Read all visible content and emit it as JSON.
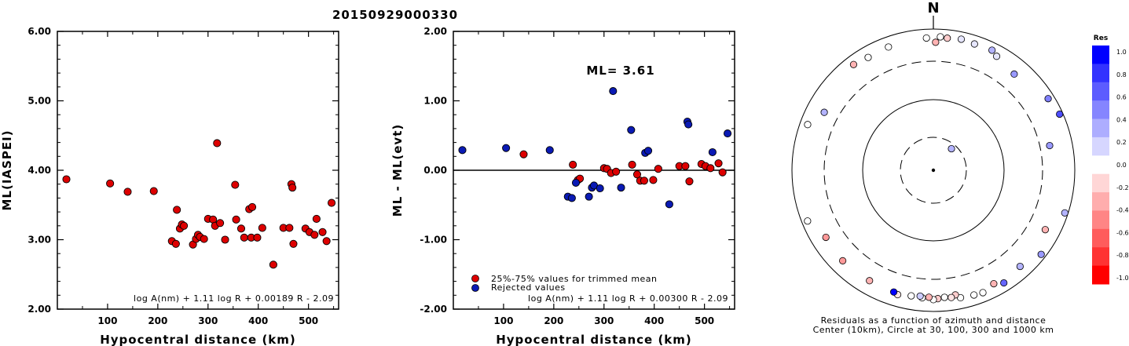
{
  "title": "20150929000330",
  "chart_data": [
    {
      "type": "scatter",
      "xlabel": "Hypocentral distance (km)",
      "ylabel": "ML(IASPEI)",
      "xlim": [
        0,
        560
      ],
      "ylim": [
        2.0,
        6.0
      ],
      "x_ticks": [
        "100",
        "200",
        "300",
        "400",
        "500"
      ],
      "y_ticks": [
        "2.00",
        "3.00",
        "4.00",
        "5.00",
        "6.00"
      ],
      "formula": "log A(nm) + 1.11 log R + 0.00189 R - 2.09",
      "series": [
        {
          "color": "#dd0000",
          "points": [
            [
              18,
              3.87
            ],
            [
              105,
              3.81
            ],
            [
              140,
              3.69
            ],
            [
              192,
              3.7
            ],
            [
              228,
              2.98
            ],
            [
              236,
              2.94
            ],
            [
              238,
              3.43
            ],
            [
              244,
              3.16
            ],
            [
              248,
              3.22
            ],
            [
              252,
              3.2
            ],
            [
              270,
              2.93
            ],
            [
              276,
              3.01
            ],
            [
              280,
              3.07
            ],
            [
              284,
              3.04
            ],
            [
              292,
              3.01
            ],
            [
              300,
              3.3
            ],
            [
              310,
              3.29
            ],
            [
              314,
              3.2
            ],
            [
              318,
              4.39
            ],
            [
              324,
              3.24
            ],
            [
              334,
              3.0
            ],
            [
              354,
              3.79
            ],
            [
              356,
              3.29
            ],
            [
              366,
              3.16
            ],
            [
              372,
              3.03
            ],
            [
              382,
              3.44
            ],
            [
              386,
              3.03
            ],
            [
              388,
              3.47
            ],
            [
              398,
              3.03
            ],
            [
              408,
              3.17
            ],
            [
              430,
              2.64
            ],
            [
              450,
              3.17
            ],
            [
              462,
              3.17
            ],
            [
              466,
              3.8
            ],
            [
              468,
              3.75
            ],
            [
              470,
              2.94
            ],
            [
              494,
              3.16
            ],
            [
              502,
              3.11
            ],
            [
              512,
              3.07
            ],
            [
              516,
              3.3
            ],
            [
              528,
              3.11
            ],
            [
              536,
              2.98
            ],
            [
              546,
              3.53
            ]
          ]
        }
      ]
    },
    {
      "type": "scatter",
      "xlabel": "Hypocentral distance (km)",
      "ylabel": "ML - ML(evt)",
      "xlim": [
        0,
        560
      ],
      "ylim": [
        -2.0,
        2.0
      ],
      "x_ticks": [
        "100",
        "200",
        "300",
        "400",
        "500"
      ],
      "y_ticks": [
        "-2.00",
        "-1.00",
        "0.00",
        "1.00",
        "2.00"
      ],
      "annotation": "ML= 3.61",
      "formula": "log A(nm) + 1.11 log R + 0.00300 R - 2.09",
      "legend": [
        "25%-75% values for trimmed mean",
        "Rejected values"
      ],
      "series": [
        {
          "name": "25%-75% values for trimmed mean",
          "color": "#dd0000",
          "points": [
            [
              140,
              0.23
            ],
            [
              238,
              0.08
            ],
            [
              248,
              -0.14
            ],
            [
              252,
              -0.12
            ],
            [
              300,
              0.03
            ],
            [
              306,
              0.02
            ],
            [
              314,
              -0.04
            ],
            [
              324,
              -0.02
            ],
            [
              356,
              0.08
            ],
            [
              366,
              -0.06
            ],
            [
              372,
              -0.15
            ],
            [
              380,
              -0.15
            ],
            [
              398,
              -0.14
            ],
            [
              408,
              0.02
            ],
            [
              450,
              0.06
            ],
            [
              462,
              0.06
            ],
            [
              470,
              -0.16
            ],
            [
              494,
              0.09
            ],
            [
              502,
              0.06
            ],
            [
              512,
              0.03
            ],
            [
              528,
              0.1
            ],
            [
              536,
              -0.03
            ]
          ]
        },
        {
          "name": "Rejected values",
          "color": "#0a1ab4",
          "points": [
            [
              18,
              0.29
            ],
            [
              105,
              0.32
            ],
            [
              192,
              0.29
            ],
            [
              228,
              -0.38
            ],
            [
              236,
              -0.4
            ],
            [
              244,
              -0.18
            ],
            [
              270,
              -0.38
            ],
            [
              276,
              -0.25
            ],
            [
              280,
              -0.22
            ],
            [
              292,
              -0.26
            ],
            [
              318,
              1.14
            ],
            [
              334,
              -0.25
            ],
            [
              354,
              0.58
            ],
            [
              382,
              0.25
            ],
            [
              388,
              0.28
            ],
            [
              430,
              -0.49
            ],
            [
              466,
              0.7
            ],
            [
              468,
              0.66
            ],
            [
              516,
              0.26
            ],
            [
              546,
              0.53
            ]
          ]
        }
      ]
    },
    {
      "type": "scatter",
      "plot": "polar residual map",
      "north_label": "N",
      "caption_line1": "Residuals as a function of azimuth and distance",
      "caption_line2": "Center (10km), Circle at 30, 100, 300 and 1000 km",
      "colorbar": {
        "title": "Res",
        "labels": [
          "1.0",
          "0.8",
          "0.6",
          "0.4",
          "0.2",
          "0.0",
          "-0.2",
          "-0.4",
          "-0.6",
          "-0.8",
          "-1.0"
        ],
        "colors": [
          "#0000ff",
          "#3333ff",
          "#5c5cff",
          "#8585ff",
          "#adadff",
          "#d6d6ff",
          "#ffffff",
          "#ffd6d6",
          "#ffadad",
          "#ff8585",
          "#ff5c5c",
          "#ff3333",
          "#ff0000"
        ]
      },
      "stations": [
        {
          "az": 40,
          "dist": 25,
          "res": 0.3
        },
        {
          "az": 357,
          "dist": 750,
          "res": 0.0
        },
        {
          "az": 3,
          "dist": 780,
          "res": 0.0
        },
        {
          "az": 6,
          "dist": 760,
          "res": -0.2
        },
        {
          "az": 1,
          "dist": 650,
          "res": -0.3
        },
        {
          "az": 12,
          "dist": 790,
          "res": 0.1
        },
        {
          "az": 18,
          "dist": 760,
          "res": 0.1
        },
        {
          "az": 26,
          "dist": 780,
          "res": 0.3
        },
        {
          "az": 29,
          "dist": 700,
          "res": 0.1
        },
        {
          "az": 40,
          "dist": 600,
          "res": 0.4
        },
        {
          "az": 58,
          "dist": 820,
          "res": 0.5
        },
        {
          "az": 66,
          "dist": 900,
          "res": 0.7
        },
        {
          "az": 78,
          "dist": 480,
          "res": 0.4
        },
        {
          "az": 108,
          "dist": 900,
          "res": 0.3
        },
        {
          "az": 118,
          "dist": 620,
          "res": -0.3
        },
        {
          "az": 128,
          "dist": 860,
          "res": 0.4
        },
        {
          "az": 138,
          "dist": 680,
          "res": 0.3
        },
        {
          "az": 148,
          "dist": 760,
          "res": 0.6
        },
        {
          "az": 152,
          "dist": 660,
          "res": -0.3
        },
        {
          "az": 158,
          "dist": 740,
          "res": 0.0
        },
        {
          "az": 162,
          "dist": 720,
          "res": 0.0
        },
        {
          "az": 168,
          "dist": 700,
          "res": 0.0
        },
        {
          "az": 170,
          "dist": 620,
          "res": -0.2
        },
        {
          "az": 172,
          "dist": 660,
          "res": -0.1
        },
        {
          "az": 175,
          "dist": 640,
          "res": 0.0
        },
        {
          "az": 178,
          "dist": 660,
          "res": -0.2
        },
        {
          "az": 180,
          "dist": 680,
          "res": 0.0
        },
        {
          "az": 182,
          "dist": 630,
          "res": -0.3
        },
        {
          "az": 185,
          "dist": 650,
          "res": 0.0
        },
        {
          "az": 186,
          "dist": 620,
          "res": 0.2
        },
        {
          "az": 190,
          "dist": 640,
          "res": 0.0
        },
        {
          "az": 196,
          "dist": 680,
          "res": -0.1
        },
        {
          "az": 198,
          "dist": 650,
          "res": 1.0
        },
        {
          "az": 210,
          "dist": 640,
          "res": -0.3
        },
        {
          "az": 225,
          "dist": 650,
          "res": -0.4
        },
        {
          "az": 238,
          "dist": 620,
          "res": -0.4
        },
        {
          "az": 248,
          "dist": 830,
          "res": 0.0
        },
        {
          "az": 290,
          "dist": 780,
          "res": 0.0
        },
        {
          "az": 298,
          "dist": 560,
          "res": 0.3
        },
        {
          "az": 323,
          "dist": 750,
          "res": -0.3
        },
        {
          "az": 330,
          "dist": 700,
          "res": 0.0
        },
        {
          "az": 340,
          "dist": 720,
          "res": 0.0
        }
      ]
    }
  ]
}
